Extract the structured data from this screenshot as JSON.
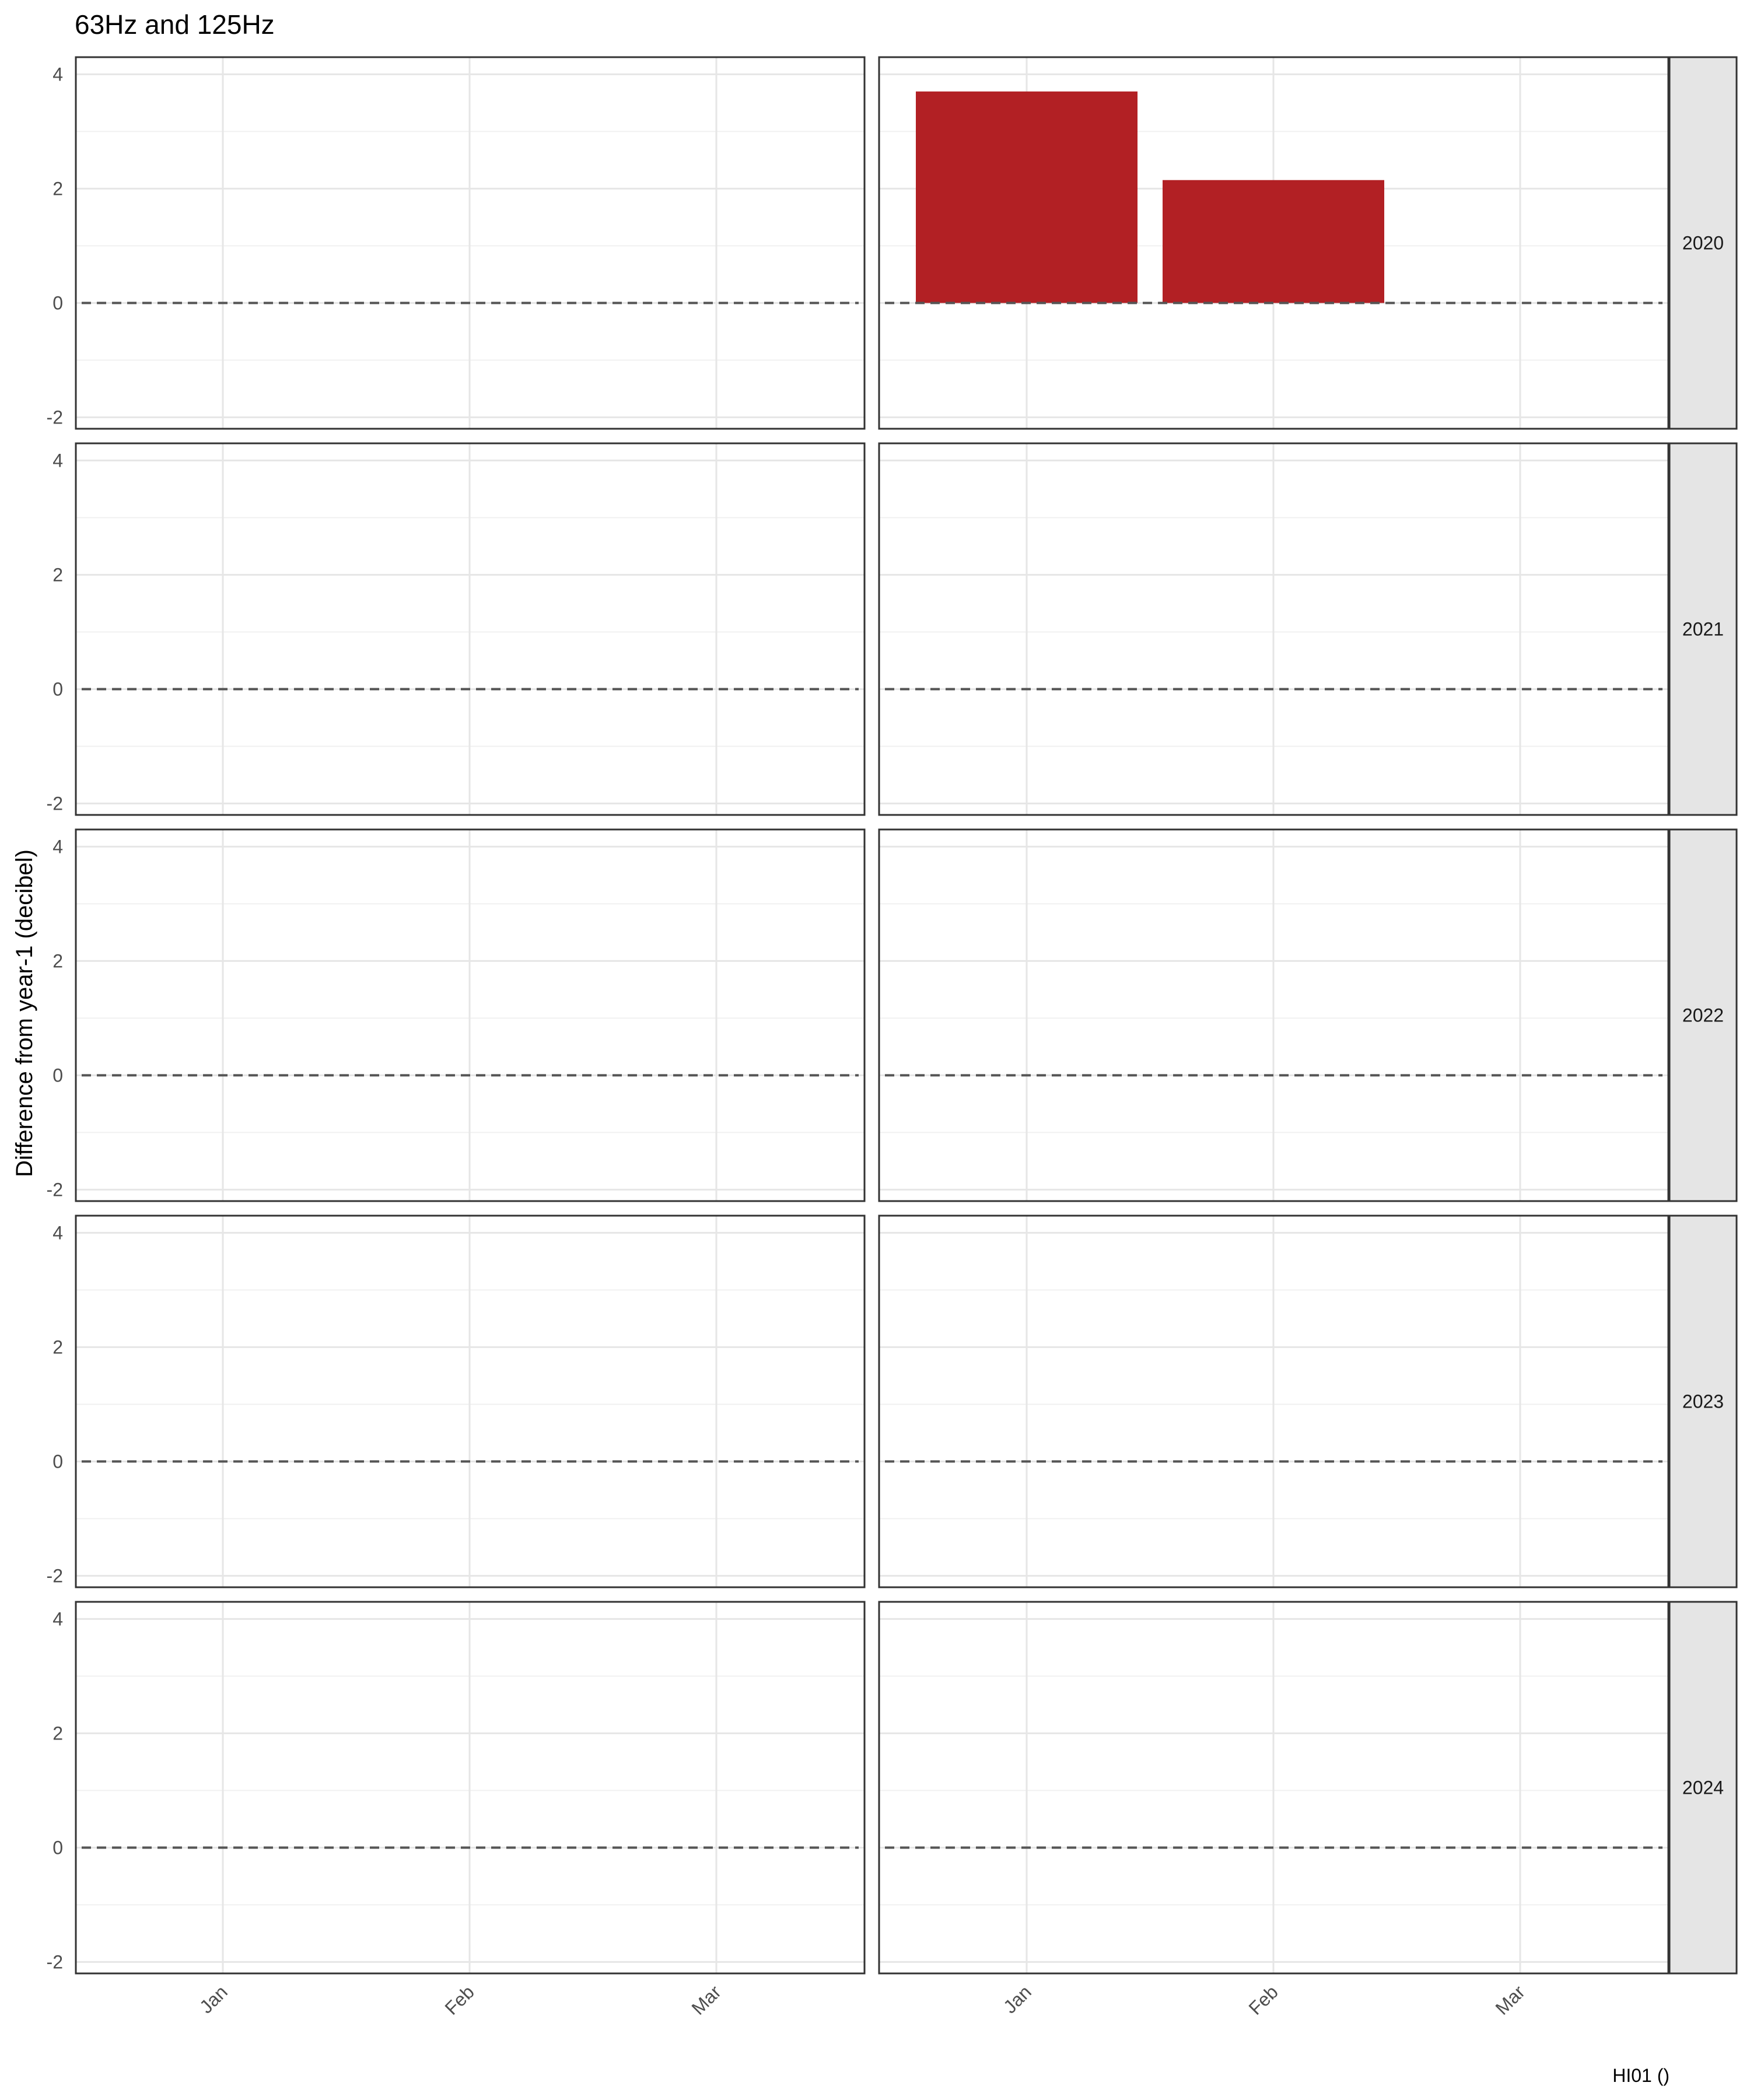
{
  "chart_data": {
    "type": "bar",
    "title": "63Hz and 125Hz",
    "ylabel": "Difference from year-1 (decibel)",
    "xlabel": "",
    "caption": "HI01 ()",
    "x_ticks": [
      "Jan",
      "Feb",
      "Mar"
    ],
    "y_ticks": [
      -2,
      0,
      2,
      4
    ],
    "ylim": [
      -2.2,
      4.3
    ],
    "reference_line": 0,
    "grid": true,
    "bar_color": "#b22024",
    "rows": [
      "2020",
      "2021",
      "2022",
      "2023",
      "2024"
    ],
    "panels": [
      {
        "row": "2020",
        "col": 1,
        "bars": []
      },
      {
        "row": "2020",
        "col": 2,
        "bars": [
          {
            "x": "Jan",
            "value": 3.7
          },
          {
            "x": "Feb",
            "value": 2.15
          }
        ]
      },
      {
        "row": "2021",
        "col": 1,
        "bars": []
      },
      {
        "row": "2021",
        "col": 2,
        "bars": []
      },
      {
        "row": "2022",
        "col": 1,
        "bars": []
      },
      {
        "row": "2022",
        "col": 2,
        "bars": []
      },
      {
        "row": "2023",
        "col": 1,
        "bars": []
      },
      {
        "row": "2023",
        "col": 2,
        "bars": []
      },
      {
        "row": "2024",
        "col": 1,
        "bars": []
      },
      {
        "row": "2024",
        "col": 2,
        "bars": []
      }
    ]
  }
}
